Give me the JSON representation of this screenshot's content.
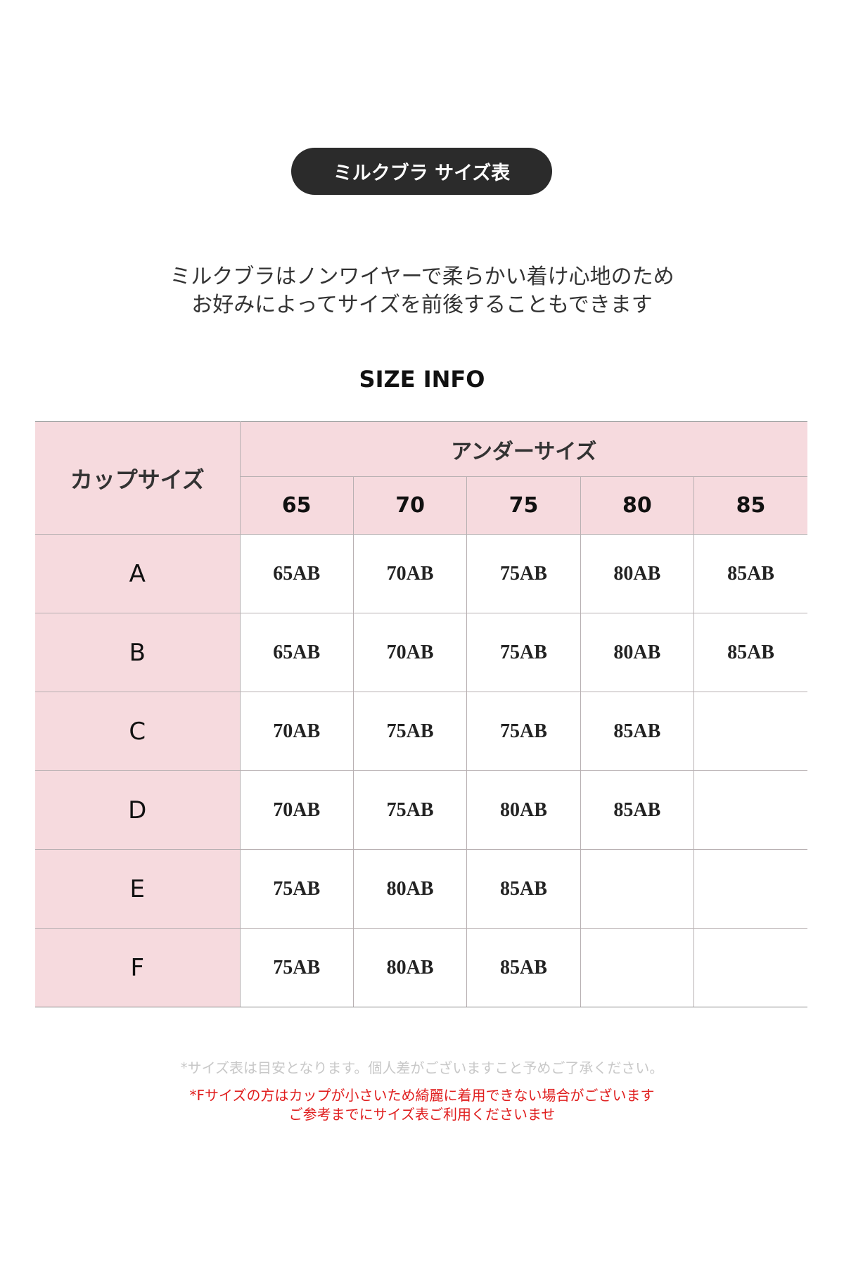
{
  "title_pill": "ミルクブラ サイズ表",
  "intro": [
    "ミルクブラはノンワイヤーで柔らかい着け心地のため",
    "お好みによってサイズを前後することもできます"
  ],
  "section_title": "SIZE INFO",
  "table": {
    "cup_header": "カップサイズ",
    "under_header": "アンダーサイズ",
    "under_sizes": [
      "65",
      "70",
      "75",
      "80",
      "85"
    ],
    "rows": [
      {
        "cup": "A",
        "values": [
          "65AB",
          "70AB",
          "75AB",
          "80AB",
          "85AB"
        ]
      },
      {
        "cup": "B",
        "values": [
          "65AB",
          "70AB",
          "75AB",
          "80AB",
          "85AB"
        ]
      },
      {
        "cup": "C",
        "values": [
          "70AB",
          "75AB",
          "75AB",
          "85AB",
          ""
        ]
      },
      {
        "cup": "D",
        "values": [
          "70AB",
          "75AB",
          "80AB",
          "85AB",
          ""
        ]
      },
      {
        "cup": "E",
        "values": [
          "75AB",
          "80AB",
          "85AB",
          "",
          ""
        ]
      },
      {
        "cup": "F",
        "values": [
          "75AB",
          "80AB",
          "85AB",
          "",
          ""
        ]
      }
    ]
  },
  "notes": {
    "gray": "*サイズ表は目安となります。個人差がございますこと予めご了承ください。",
    "red": [
      "*Fサイズの方はカップが小さいため綺麗に着用できない場合がございます",
      "ご参考までにサイズ表ご利用くださいませ"
    ]
  },
  "colors": {
    "pill": "#2b2b2b",
    "header_bg": "#f6dade",
    "warning": "#e01e1e",
    "note_gray": "#c8c8c8"
  }
}
